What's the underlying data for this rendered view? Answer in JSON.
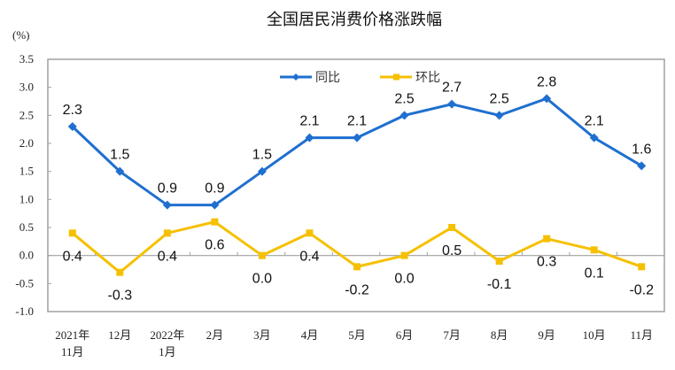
{
  "chart_data": {
    "type": "line",
    "title": "全国居民消费价格涨跌幅",
    "ylabel": "(%)",
    "ylim": [
      -1.0,
      3.5
    ],
    "yticks": [
      "3.5",
      "3.0",
      "2.5",
      "2.0",
      "1.5",
      "1.0",
      "0.5",
      "0.0",
      "-0.5",
      "-1.0"
    ],
    "ytick_values": [
      3.5,
      3.0,
      2.5,
      2.0,
      1.5,
      1.0,
      0.5,
      0.0,
      -0.5,
      -1.0
    ],
    "categories": [
      [
        "2021年",
        "11月"
      ],
      [
        "12月"
      ],
      [
        "2022年",
        "1月"
      ],
      [
        "2月"
      ],
      [
        "3月"
      ],
      [
        "4月"
      ],
      [
        "5月"
      ],
      [
        "6月"
      ],
      [
        "7月"
      ],
      [
        "8月"
      ],
      [
        "9月"
      ],
      [
        "10月"
      ],
      [
        "11月"
      ]
    ],
    "legend_position": "top-center",
    "grid": false,
    "series": [
      {
        "name": "同比",
        "color": "#1F6FD0",
        "marker": "diamond",
        "values": [
          2.3,
          1.5,
          0.9,
          0.9,
          1.5,
          2.1,
          2.1,
          2.5,
          2.7,
          2.5,
          2.8,
          2.1,
          1.6
        ],
        "labels": [
          "2.3",
          "1.5",
          "0.9",
          "0.9",
          "1.5",
          "2.1",
          "2.1",
          "2.5",
          "2.7",
          "2.5",
          "2.8",
          "2.1",
          "1.6"
        ]
      },
      {
        "name": "环比",
        "color": "#F5C000",
        "marker": "square",
        "values": [
          0.4,
          -0.3,
          0.4,
          0.6,
          0.0,
          0.4,
          -0.2,
          0.0,
          0.5,
          -0.1,
          0.3,
          0.1,
          -0.2
        ],
        "labels": [
          "0.4",
          "-0.3",
          "0.4",
          "0.6",
          "0.0",
          "0.4",
          "-0.2",
          "0.0",
          "0.5",
          "-0.1",
          "0.3",
          "0.1",
          "-0.2"
        ]
      }
    ]
  }
}
